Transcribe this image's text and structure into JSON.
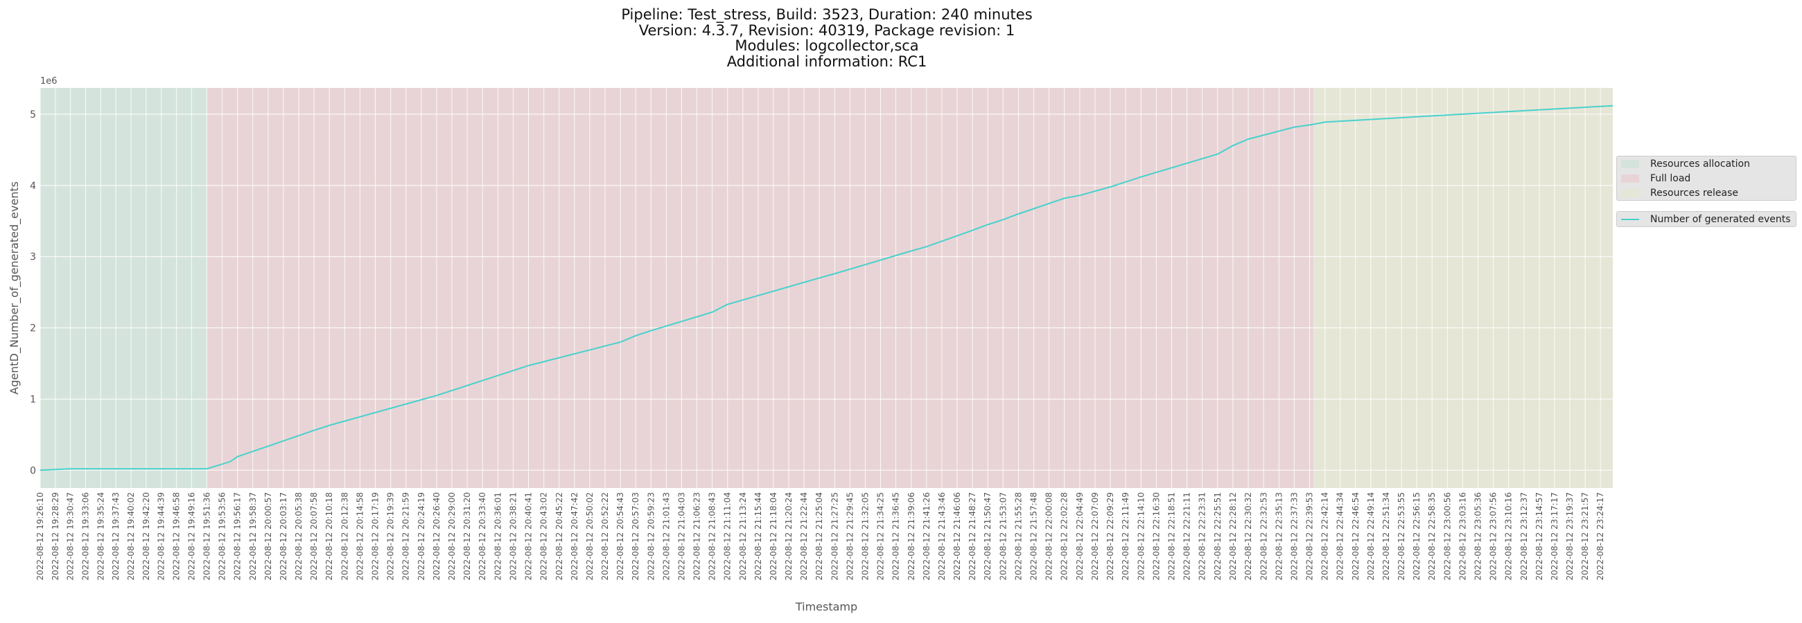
{
  "title": {
    "line1": "Pipeline: Test_stress, Build: 3523, Duration: 240 minutes",
    "line2": "Version: 4.3.7, Revision: 40319, Package revision: 1",
    "line3": "Modules: logcollector,sca",
    "line4": "Additional information: RC1"
  },
  "legend": {
    "phases": [
      {
        "label": "Resources allocation",
        "color": "#d4e4dc"
      },
      {
        "label": "Full load",
        "color": "#e8d4d6"
      },
      {
        "label": "Resources release",
        "color": "#e6e6d6"
      }
    ],
    "series_label": "Number of generated events"
  },
  "chart_data": {
    "type": "line",
    "xlabel": "Timestamp",
    "ylabel": "AgentD_Number_of_generated_events",
    "y_offset_label": "1e6",
    "y_ticks": [
      0,
      1,
      2,
      3,
      4,
      5
    ],
    "ylim": [
      -0.25,
      5.37
    ],
    "x_ticks": [
      "2022-08-12 19:26:10",
      "2022-08-12 19:28:29",
      "2022-08-12 19:30:47",
      "2022-08-12 19:33:06",
      "2022-08-12 19:35:24",
      "2022-08-12 19:37:43",
      "2022-08-12 19:40:02",
      "2022-08-12 19:42:20",
      "2022-08-12 19:44:39",
      "2022-08-12 19:46:58",
      "2022-08-12 19:49:16",
      "2022-08-12 19:51:36",
      "2022-08-12 19:53:56",
      "2022-08-12 19:56:17",
      "2022-08-12 19:58:37",
      "2022-08-12 20:00:57",
      "2022-08-12 20:03:17",
      "2022-08-12 20:05:38",
      "2022-08-12 20:07:58",
      "2022-08-12 20:10:18",
      "2022-08-12 20:12:38",
      "2022-08-12 20:14:58",
      "2022-08-12 20:17:19",
      "2022-08-12 20:19:39",
      "2022-08-12 20:21:59",
      "2022-08-12 20:24:19",
      "2022-08-12 20:26:40",
      "2022-08-12 20:29:00",
      "2022-08-12 20:31:20",
      "2022-08-12 20:33:40",
      "2022-08-12 20:36:01",
      "2022-08-12 20:38:21",
      "2022-08-12 20:40:41",
      "2022-08-12 20:43:02",
      "2022-08-12 20:45:22",
      "2022-08-12 20:47:42",
      "2022-08-12 20:50:02",
      "2022-08-12 20:52:22",
      "2022-08-12 20:54:43",
      "2022-08-12 20:57:03",
      "2022-08-12 20:59:23",
      "2022-08-12 21:01:43",
      "2022-08-12 21:04:03",
      "2022-08-12 21:06:23",
      "2022-08-12 21:08:43",
      "2022-08-12 21:11:04",
      "2022-08-12 21:13:24",
      "2022-08-12 21:15:44",
      "2022-08-12 21:18:04",
      "2022-08-12 21:20:24",
      "2022-08-12 21:22:44",
      "2022-08-12 21:25:04",
      "2022-08-12 21:27:25",
      "2022-08-12 21:29:45",
      "2022-08-12 21:32:05",
      "2022-08-12 21:34:25",
      "2022-08-12 21:36:45",
      "2022-08-12 21:39:06",
      "2022-08-12 21:41:26",
      "2022-08-12 21:43:46",
      "2022-08-12 21:46:06",
      "2022-08-12 21:48:27",
      "2022-08-12 21:50:47",
      "2022-08-12 21:53:07",
      "2022-08-12 21:55:28",
      "2022-08-12 21:57:48",
      "2022-08-12 22:00:08",
      "2022-08-12 22:02:28",
      "2022-08-12 22:04:49",
      "2022-08-12 22:07:09",
      "2022-08-12 22:09:29",
      "2022-08-12 22:11:49",
      "2022-08-12 22:14:10",
      "2022-08-12 22:16:30",
      "2022-08-12 22:18:51",
      "2022-08-12 22:21:11",
      "2022-08-12 22:23:31",
      "2022-08-12 22:25:51",
      "2022-08-12 22:28:12",
      "2022-08-12 22:30:32",
      "2022-08-12 22:32:53",
      "2022-08-12 22:35:13",
      "2022-08-12 22:37:33",
      "2022-08-12 22:39:53",
      "2022-08-12 22:42:14",
      "2022-08-12 22:44:34",
      "2022-08-12 22:46:54",
      "2022-08-12 22:49:14",
      "2022-08-12 22:51:34",
      "2022-08-12 22:53:55",
      "2022-08-12 22:56:15",
      "2022-08-12 22:58:35",
      "2022-08-12 23:00:56",
      "2022-08-12 23:03:16",
      "2022-08-12 23:05:36",
      "2022-08-12 23:07:56",
      "2022-08-12 23:10:16",
      "2022-08-12 23:12:37",
      "2022-08-12 23:14:57",
      "2022-08-12 23:17:17",
      "2022-08-12 23:19:37",
      "2022-08-12 23:21:57",
      "2022-08-12 23:24:17"
    ],
    "phases": [
      {
        "name": "Resources allocation",
        "start": "2022-08-12 19:26:10",
        "end": "2022-08-12 19:51:36"
      },
      {
        "name": "Full load",
        "start": "2022-08-12 19:51:36",
        "end": "2022-08-12 22:40:30"
      },
      {
        "name": "Resources release",
        "start": "2022-08-12 22:40:30",
        "end": "2022-08-12 23:26:10"
      }
    ],
    "series": [
      {
        "name": "Number of generated events",
        "color": "#48d1cc",
        "x": [
          "2022-08-12 19:26:10",
          "2022-08-12 19:28:29",
          "2022-08-12 19:30:47",
          "2022-08-12 19:40:02",
          "2022-08-12 19:49:16",
          "2022-08-12 19:51:36",
          "2022-08-12 19:55:10",
          "2022-08-12 19:56:17",
          "2022-08-12 20:07:58",
          "2022-08-12 20:10:18",
          "2022-08-12 20:24:19",
          "2022-08-12 20:26:40",
          "2022-08-12 20:38:21",
          "2022-08-12 20:40:41",
          "2022-08-12 20:54:43",
          "2022-08-12 20:57:03",
          "2022-08-12 20:59:23",
          "2022-08-12 21:08:43",
          "2022-08-12 21:11:04",
          "2022-08-12 21:25:04",
          "2022-08-12 21:27:25",
          "2022-08-12 21:39:06",
          "2022-08-12 21:41:26",
          "2022-08-12 21:48:27",
          "2022-08-12 21:50:47",
          "2022-08-12 21:53:07",
          "2022-08-12 21:55:28",
          "2022-08-12 22:02:28",
          "2022-08-12 22:04:49",
          "2022-08-12 22:09:29",
          "2022-08-12 22:11:49",
          "2022-08-12 22:14:10",
          "2022-08-12 22:25:51",
          "2022-08-12 22:28:12",
          "2022-08-12 22:30:32",
          "2022-08-12 22:37:33",
          "2022-08-12 22:39:53",
          "2022-08-12 22:40:30",
          "2022-08-12 22:42:14",
          "2022-08-12 23:00:56",
          "2022-08-12 23:26:10"
        ],
        "values": [
          0.0,
          0.01,
          0.02,
          0.02,
          0.02,
          0.02,
          0.12,
          0.19,
          0.56,
          0.63,
          0.99,
          1.05,
          1.4,
          1.47,
          1.8,
          1.89,
          1.96,
          2.22,
          2.33,
          2.7,
          2.76,
          3.08,
          3.14,
          3.37,
          3.45,
          3.52,
          3.6,
          3.82,
          3.86,
          3.98,
          4.05,
          4.12,
          4.44,
          4.56,
          4.65,
          4.82,
          4.85,
          4.86,
          4.89,
          4.99,
          5.12
        ]
      }
    ]
  }
}
